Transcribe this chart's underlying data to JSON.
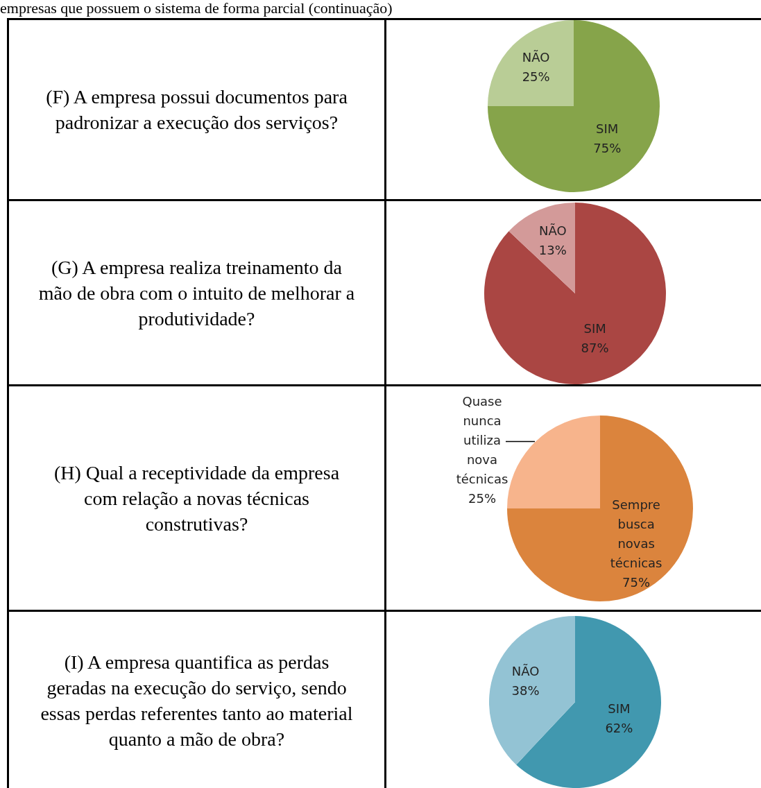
{
  "chart_data": [
    {
      "type": "pie",
      "title": "(F) A empresa possui documentos para padronizar a execução dos serviços?",
      "annotations": [
        "empresas que possuem o sistema de forma parcial (continuação)"
      ],
      "categories": [
        "SIM",
        "NÃO"
      ],
      "values": [
        75,
        25
      ],
      "value_labels": [
        "75%",
        "25%"
      ],
      "colors": [
        "#86a44a",
        "#b9cd96"
      ]
    },
    {
      "type": "pie",
      "title": "(G) A empresa realiza treinamento da mão de obra com o intuito de melhorar a produtividade?",
      "categories": [
        "SIM",
        "NÃO"
      ],
      "values": [
        87,
        13
      ],
      "value_labels": [
        "87%",
        "13%"
      ],
      "colors": [
        "#aa4643",
        "#d39a99"
      ]
    },
    {
      "type": "pie",
      "title": "(H) Qual a receptividade da empresa com relação a novas técnicas construtivas?",
      "categories": [
        "Sempre busca novas técnicas",
        "Quase nunca utiliza nova técnicas"
      ],
      "values": [
        75,
        25
      ],
      "value_labels": [
        "75%",
        "25%"
      ],
      "colors": [
        "#db843d",
        "#f7b48c"
      ]
    },
    {
      "type": "pie",
      "title": "(I) A empresa quantifica as perdas geradas na execução do serviço, sendo essas perdas referentes tanto ao material quanto a mão de obra?",
      "categories": [
        "SIM",
        "NÃO"
      ],
      "values": [
        62,
        38
      ],
      "value_labels": [
        "62%",
        "38%"
      ],
      "colors": [
        "#4198af",
        "#93c3d4"
      ]
    }
  ]
}
